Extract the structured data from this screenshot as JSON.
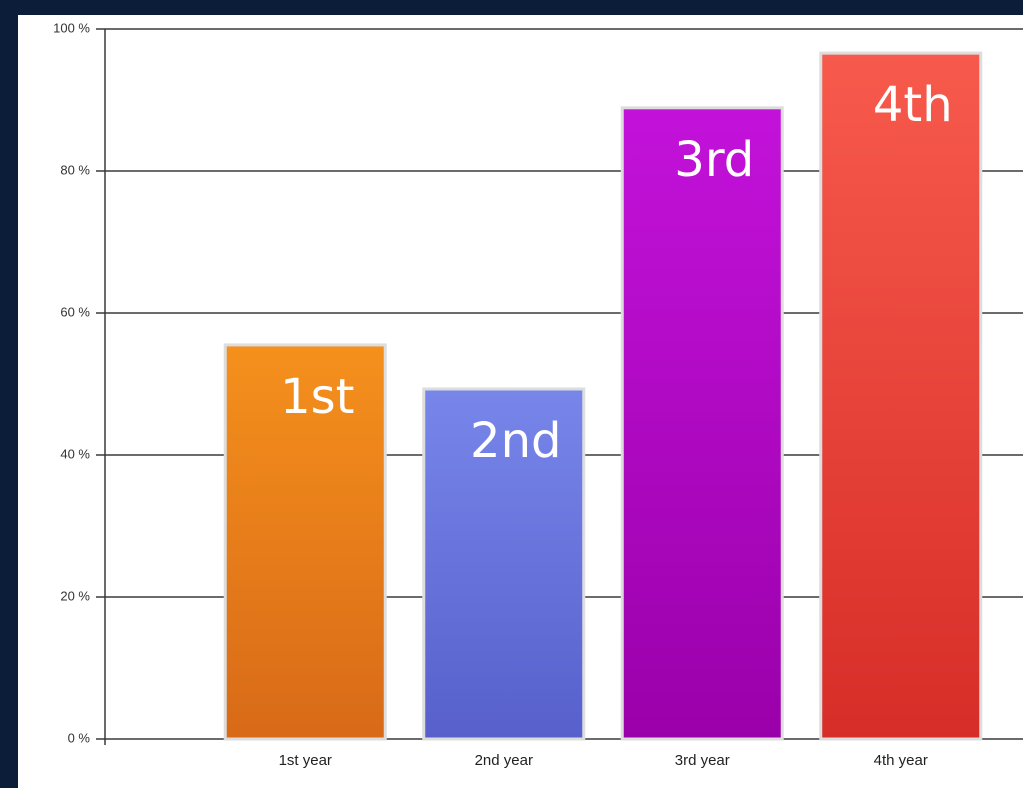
{
  "chart_data": {
    "type": "bar",
    "categories": [
      "1st year",
      "2nd year",
      "3rd year",
      "4th year"
    ],
    "values": [
      55.5,
      49.3,
      88.9,
      96.6
    ],
    "colors": [
      [
        "#f5901c",
        "#d86a18"
      ],
      [
        "#7886ea",
        "#5760cb"
      ],
      [
        "#c312da",
        "#9a00aa"
      ],
      [
        "#f75a4c",
        "#d72d28"
      ]
    ],
    "annotations": [
      "1st",
      "2nd",
      "3rd",
      "4th"
    ],
    "ylim": [
      0,
      100
    ],
    "yticks": [
      {
        "value": 0,
        "label": "0 %"
      },
      {
        "value": 20,
        "label": "20 %"
      },
      {
        "value": 40,
        "label": "40 %"
      },
      {
        "value": 60,
        "label": "60 %"
      },
      {
        "value": 80,
        "label": "80 %"
      },
      {
        "value": 100,
        "label": "100 %"
      }
    ],
    "grid": true
  }
}
